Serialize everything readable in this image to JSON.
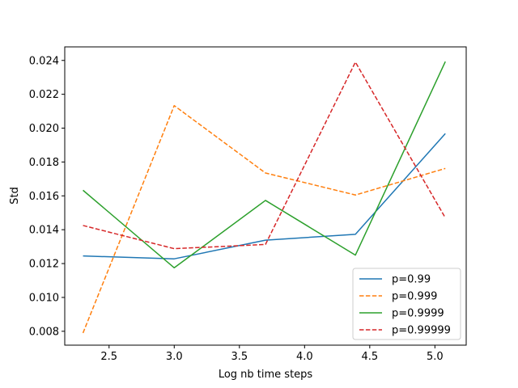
{
  "chart_data": {
    "type": "line",
    "title": "",
    "xlabel": "Log nb time  steps",
    "ylabel": "Std",
    "xlim": [
      2.16,
      5.24
    ],
    "ylim": [
      0.00718,
      0.0248
    ],
    "xticks": [
      2.5,
      3.0,
      3.5,
      4.0,
      4.5,
      5.0
    ],
    "xtick_labels": [
      "2.5",
      "3.0",
      "3.5",
      "4.0",
      "4.5",
      "5.0"
    ],
    "yticks": [
      0.008,
      0.01,
      0.012,
      0.014,
      0.016,
      0.018,
      0.02,
      0.022,
      0.024
    ],
    "ytick_labels": [
      "0.008",
      "0.010",
      "0.012",
      "0.014",
      "0.016",
      "0.018",
      "0.020",
      "0.022",
      "0.024"
    ],
    "grid": false,
    "legend_position": "lower-right",
    "x": [
      2.3,
      3.0,
      3.7,
      4.39,
      5.08
    ],
    "series": [
      {
        "name": "p=0.99",
        "values": [
          0.01245,
          0.01228,
          0.01338,
          0.01373,
          0.01968
        ],
        "color": "#1f77b4",
        "dashed": false
      },
      {
        "name": "p=0.999",
        "values": [
          0.0079,
          0.02133,
          0.01735,
          0.01605,
          0.01762
        ],
        "color": "#ff7f0e",
        "dashed": true
      },
      {
        "name": "p=0.9999",
        "values": [
          0.01633,
          0.01175,
          0.01573,
          0.0125,
          0.02393
        ],
        "color": "#2ca02c",
        "dashed": false
      },
      {
        "name": "p=0.99999",
        "values": [
          0.01425,
          0.01288,
          0.01313,
          0.0239,
          0.0147
        ],
        "color": "#d62728",
        "dashed": true
      }
    ]
  }
}
